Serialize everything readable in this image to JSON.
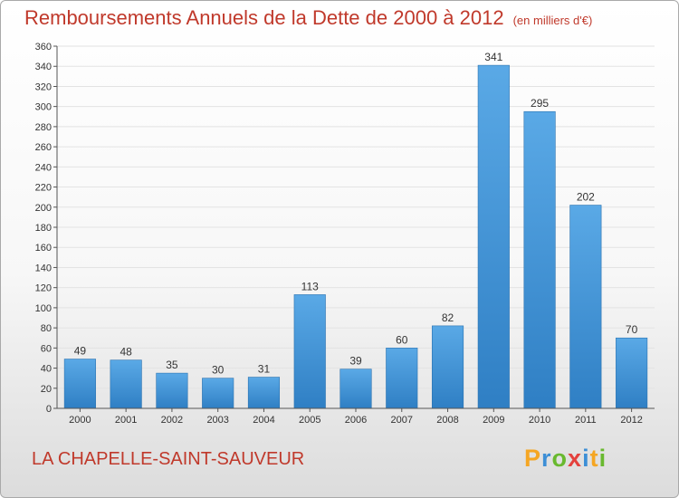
{
  "title": "Remboursements Annuels de la Dette de 2000 à 2012",
  "unit_note": "(en milliers d'€)",
  "commune": "LA CHAPELLE-SAINT-SAUVEUR",
  "brand": "Proxiti",
  "colors": {
    "title": "#c0392b",
    "bar_top": "#5aa9e6",
    "bar_bottom": "#2f7fc4",
    "grid": "#e3e3e3"
  },
  "chart_data": {
    "type": "bar",
    "categories": [
      "2000",
      "2001",
      "2002",
      "2003",
      "2004",
      "2005",
      "2006",
      "2007",
      "2008",
      "2009",
      "2010",
      "2011",
      "2012"
    ],
    "values": [
      49,
      48,
      35,
      30,
      31,
      113,
      39,
      60,
      82,
      341,
      295,
      202,
      70
    ],
    "title": "Remboursements Annuels de la Dette de 2000 à 2012",
    "subtitle": "(en milliers d'€)",
    "ylim": [
      0,
      360
    ],
    "ytick_step": 20,
    "grid": true,
    "data_labels": true
  }
}
